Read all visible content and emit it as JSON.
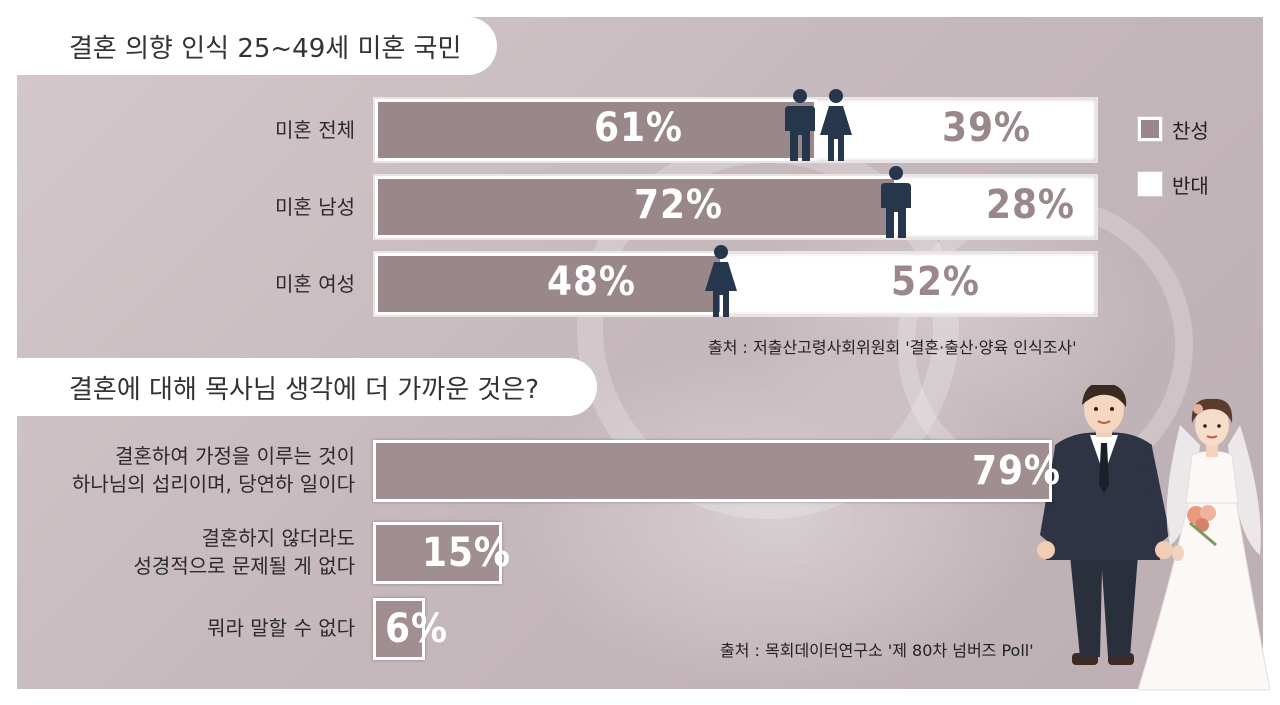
{
  "chart_data": [
    {
      "type": "bar",
      "title": "결혼 의향 인식 25~49세 미혼 국민",
      "categories": [
        "미혼 전체",
        "미혼 남성",
        "미혼 여성"
      ],
      "series": [
        {
          "name": "찬성",
          "values": [
            61,
            72,
            48
          ],
          "labels": [
            "61%",
            "72%",
            "48%"
          ]
        },
        {
          "name": "반대",
          "values": [
            39,
            28,
            52
          ],
          "labels": [
            "39%",
            "28%",
            "52%"
          ]
        }
      ],
      "stacked": true,
      "legend": "right",
      "source": "출처 : 저출산고령사회위원회 '결혼·출산·양육 인식조사'"
    },
    {
      "type": "bar",
      "title": "결혼에 대해 목사님 생각에 더 가까운 것은?",
      "categories": [
        [
          "결혼하여 가정을 이루는 것이",
          "하나님의 섭리이며, 당연하 일이다"
        ],
        [
          "결혼하지 않더라도",
          "성경적으로 문제될 게 없다"
        ],
        [
          "뭐라  말할 수 없다"
        ]
      ],
      "values": [
        79,
        15,
        6
      ],
      "labels": [
        "79%",
        "15%",
        "6%"
      ],
      "source": "출처 : 목회데이터연구소 '제 80차 넘버즈 Poll'"
    }
  ],
  "colors": {
    "agree": "#9a878a",
    "disagree": "#ffffff",
    "figure": "#25364d",
    "value_agree": "#ffffff",
    "value_disagree": "#9a878a"
  }
}
